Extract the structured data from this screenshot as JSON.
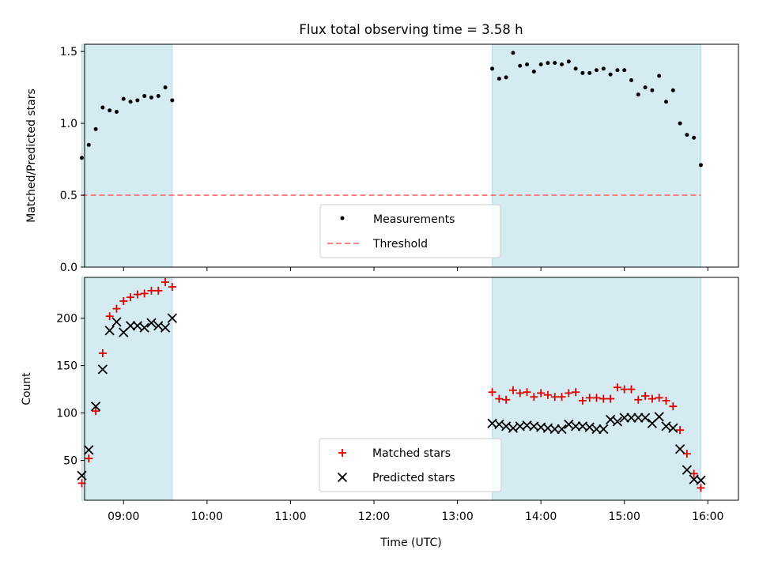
{
  "title": "Flux total observing time = 3.58 h",
  "colors": {
    "band": "#d4ebf1",
    "band_edge": "#b9dce8",
    "measurements": "#000000",
    "threshold": "#ff7070",
    "matched": "#e00000",
    "predicted": "#000000"
  },
  "chart_data": [
    {
      "type": "scatter",
      "ylabel": "Matched/Predicted stars",
      "ylim": [
        0,
        1.55
      ],
      "yticks": [
        0,
        0.5,
        1.0,
        1.5
      ],
      "ytick_labels": [
        "0.0",
        "0.5",
        "1.0",
        "1.5"
      ],
      "xlim": [
        "08:32",
        "16:22"
      ],
      "legend_position": "lower center",
      "shaded_intervals": [
        [
          "08:30",
          "09:35"
        ],
        [
          "13:25",
          "15:55"
        ]
      ],
      "threshold": {
        "name": "Threshold",
        "value": 0.5,
        "x_range": [
          "08:30",
          "15:55"
        ]
      },
      "series": [
        {
          "name": "Measurements",
          "x": [
            "08:30",
            "08:35",
            "08:40",
            "08:45",
            "08:50",
            "08:55",
            "09:00",
            "09:05",
            "09:10",
            "09:15",
            "09:20",
            "09:25",
            "09:30",
            "09:35",
            "13:25",
            "13:30",
            "13:35",
            "13:40",
            "13:45",
            "13:50",
            "13:55",
            "14:00",
            "14:05",
            "14:10",
            "14:15",
            "14:20",
            "14:25",
            "14:30",
            "14:35",
            "14:40",
            "14:45",
            "14:50",
            "14:55",
            "15:00",
            "15:05",
            "15:10",
            "15:15",
            "15:20",
            "15:25",
            "15:30",
            "15:35",
            "15:40",
            "15:45",
            "15:50",
            "15:55"
          ],
          "y": [
            0.76,
            0.85,
            0.96,
            1.11,
            1.09,
            1.08,
            1.17,
            1.15,
            1.16,
            1.19,
            1.18,
            1.19,
            1.25,
            1.16,
            1.38,
            1.31,
            1.32,
            1.49,
            1.4,
            1.41,
            1.36,
            1.41,
            1.42,
            1.42,
            1.41,
            1.43,
            1.38,
            1.35,
            1.35,
            1.37,
            1.38,
            1.34,
            1.37,
            1.37,
            1.3,
            1.2,
            1.25,
            1.23,
            1.33,
            1.15,
            1.23,
            1.0,
            0.92,
            0.9,
            0.71
          ]
        }
      ]
    },
    {
      "type": "scatter",
      "ylabel": "Count",
      "xlabel": "Time (UTC)",
      "ylim": [
        8,
        243
      ],
      "yticks": [
        50,
        100,
        150,
        200
      ],
      "ytick_labels": [
        "50",
        "100",
        "150",
        "200"
      ],
      "xlim": [
        "08:32",
        "16:22"
      ],
      "xticks": [
        "09:00",
        "10:00",
        "11:00",
        "12:00",
        "13:00",
        "14:00",
        "15:00",
        "16:00"
      ],
      "legend_position": "lower center",
      "shaded_intervals": [
        [
          "08:30",
          "09:35"
        ],
        [
          "13:25",
          "15:55"
        ]
      ],
      "series": [
        {
          "name": "Matched stars",
          "x": [
            "08:30",
            "08:35",
            "08:40",
            "08:45",
            "08:50",
            "08:55",
            "09:00",
            "09:05",
            "09:10",
            "09:15",
            "09:20",
            "09:25",
            "09:30",
            "09:35",
            "13:25",
            "13:30",
            "13:35",
            "13:40",
            "13:45",
            "13:50",
            "13:55",
            "14:00",
            "14:05",
            "14:10",
            "14:15",
            "14:20",
            "14:25",
            "14:30",
            "14:35",
            "14:40",
            "14:45",
            "14:50",
            "14:55",
            "15:00",
            "15:05",
            "15:10",
            "15:15",
            "15:20",
            "15:25",
            "15:30",
            "15:35",
            "15:40",
            "15:45",
            "15:50",
            "15:55"
          ],
          "y": [
            26,
            52,
            102,
            163,
            202,
            210,
            218,
            222,
            225,
            226,
            229,
            229,
            238,
            233,
            122,
            115,
            114,
            124,
            121,
            122,
            117,
            121,
            119,
            117,
            117,
            121,
            122,
            113,
            116,
            116,
            115,
            115,
            127,
            125,
            125,
            114,
            118,
            115,
            116,
            113,
            107,
            82,
            57,
            36,
            21
          ]
        },
        {
          "name": "Predicted stars",
          "x": [
            "08:30",
            "08:35",
            "08:40",
            "08:45",
            "08:50",
            "08:55",
            "09:00",
            "09:05",
            "09:10",
            "09:15",
            "09:20",
            "09:25",
            "09:30",
            "09:35",
            "13:25",
            "13:30",
            "13:35",
            "13:40",
            "13:45",
            "13:50",
            "13:55",
            "14:00",
            "14:05",
            "14:10",
            "14:15",
            "14:20",
            "14:25",
            "14:30",
            "14:35",
            "14:40",
            "14:45",
            "14:50",
            "14:55",
            "15:00",
            "15:05",
            "15:10",
            "15:15",
            "15:20",
            "15:25",
            "15:30",
            "15:35",
            "15:40",
            "15:45",
            "15:50",
            "15:55"
          ],
          "y": [
            34,
            61,
            107,
            146,
            187,
            196,
            185,
            192,
            192,
            190,
            195,
            192,
            190,
            200,
            89,
            88,
            86,
            84,
            86,
            87,
            86,
            85,
            84,
            83,
            83,
            88,
            86,
            86,
            85,
            83,
            83,
            93,
            91,
            95,
            95,
            95,
            95,
            89,
            96,
            86,
            84,
            62,
            40,
            30,
            29
          ]
        }
      ]
    }
  ]
}
